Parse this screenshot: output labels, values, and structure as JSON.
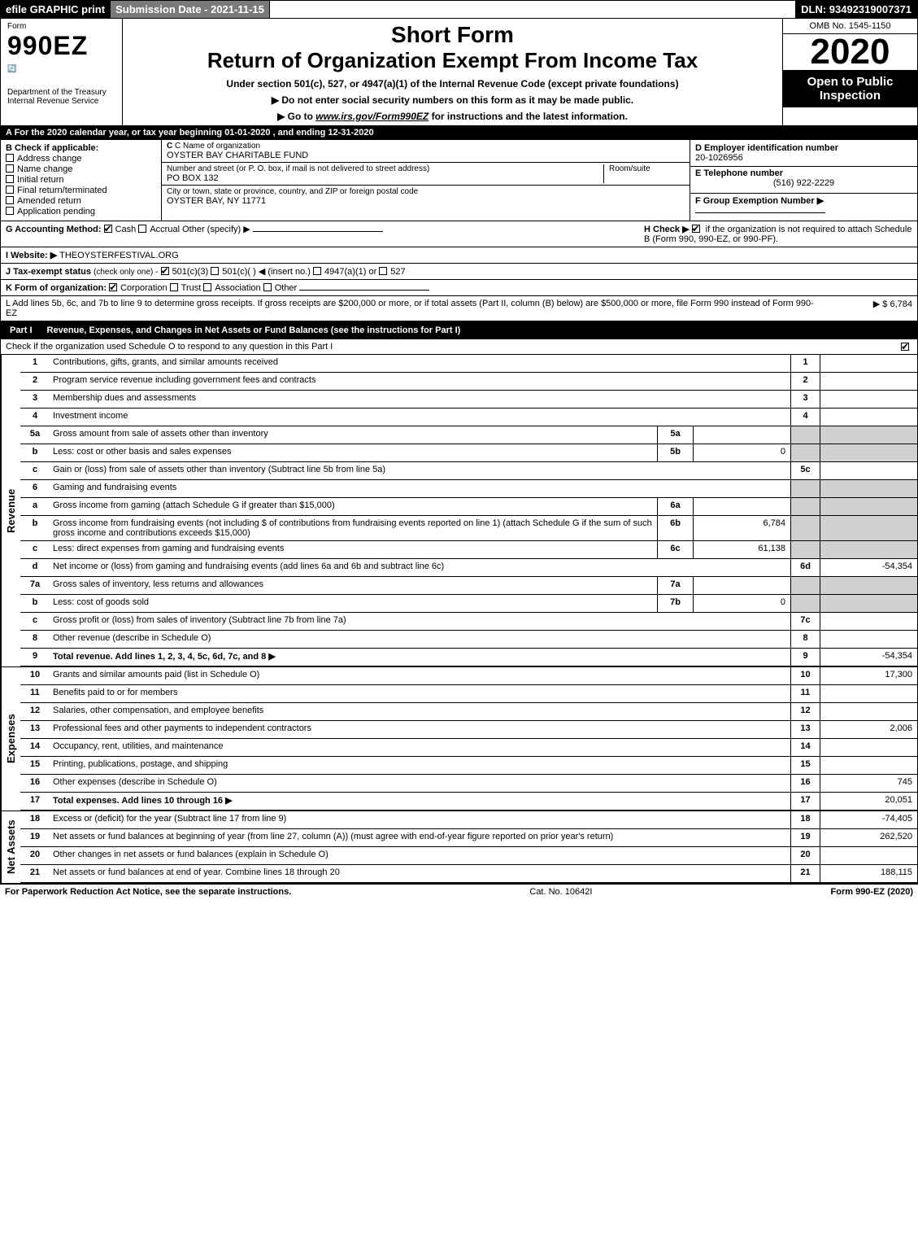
{
  "topbar": {
    "efile": "efile GRAPHIC print",
    "submission": "Submission Date - 2021-11-15",
    "dln": "DLN: 93492319007371"
  },
  "header": {
    "form_word": "Form",
    "form_number": "990EZ",
    "dept1": "Department of the Treasury",
    "dept2": "Internal Revenue Service",
    "short_form": "Short Form",
    "title": "Return of Organization Exempt From Income Tax",
    "subtitle": "Under section 501(c), 527, or 4947(a)(1) of the Internal Revenue Code (except private foundations)",
    "warn": "Do not enter social security numbers on this form as it may be made public.",
    "goto_pre": "Go to ",
    "goto_link": "www.irs.gov/Form990EZ",
    "goto_post": " for instructions and the latest information.",
    "omb": "OMB No. 1545-1150",
    "year": "2020",
    "open": "Open to Public Inspection"
  },
  "rowA": "A For the 2020 calendar year, or tax year beginning 01-01-2020 , and ending 12-31-2020",
  "sectionB": {
    "label": "B Check if applicable:",
    "items": [
      {
        "checked": false,
        "label": "Address change"
      },
      {
        "checked": false,
        "label": "Name change"
      },
      {
        "checked": false,
        "label": "Initial return"
      },
      {
        "checked": false,
        "label": "Final return/terminated"
      },
      {
        "checked": false,
        "label": "Amended return"
      },
      {
        "checked": false,
        "label": "Application pending"
      }
    ]
  },
  "sectionC": {
    "label": "C Name of organization",
    "org": "OYSTER BAY CHARITABLE FUND",
    "addr_label": "Number and street (or P. O. box, if mail is not delivered to street address)",
    "room_label": "Room/suite",
    "addr": "PO BOX 132",
    "city_label": "City or town, state or province, country, and ZIP or foreign postal code",
    "city": "OYSTER BAY, NY  11771"
  },
  "sectionD": {
    "label": "D Employer identification number",
    "value": "20-1026956"
  },
  "sectionE": {
    "label": "E Telephone number",
    "value": "(516) 922-2229"
  },
  "sectionF": {
    "label": "F Group Exemption Number ▶",
    "value": ""
  },
  "sectionG": {
    "label": "G Accounting Method:",
    "cash": "Cash",
    "accrual": "Accrual",
    "other": "Other (specify) ▶",
    "cash_checked": true
  },
  "sectionH": {
    "label": "H Check ▶",
    "checked": true,
    "rest": "if the organization is not required to attach Schedule B (Form 990, 990-EZ, or 990-PF)."
  },
  "sectionI": {
    "label": "I Website: ▶",
    "value": "THEOYSTERFESTIVAL.ORG"
  },
  "sectionJ": {
    "label": "J Tax-exempt status",
    "note": "(check only one) -",
    "opts": [
      "501(c)(3)",
      "501(c)(  ) ◀ (insert no.)",
      "4947(a)(1) or",
      "527"
    ],
    "checked_index": 0
  },
  "sectionK": {
    "label": "K Form of organization:",
    "opts": [
      "Corporation",
      "Trust",
      "Association",
      "Other"
    ],
    "checked_index": 0
  },
  "sectionL": {
    "label": "L Add lines 5b, 6c, and 7b to line 9 to determine gross receipts. If gross receipts are $200,000 or more, or if total assets (Part II, column (B) below) are $500,000 or more, file Form 990 instead of Form 990-EZ",
    "value": "▶ $ 6,784"
  },
  "partI": {
    "label": "Part I",
    "title": "Revenue, Expenses, and Changes in Net Assets or Fund Balances (see the instructions for Part I)",
    "check_line": "Check if the organization used Schedule O to respond to any question in this Part I",
    "check_checked": true
  },
  "sections": {
    "revenue_label": "Revenue",
    "expenses_label": "Expenses",
    "netassets_label": "Net Assets"
  },
  "lines": [
    {
      "n": "1",
      "desc": "Contributions, gifts, grants, and similar amounts received",
      "rnum": "1",
      "val": ""
    },
    {
      "n": "2",
      "desc": "Program service revenue including government fees and contracts",
      "rnum": "2",
      "val": ""
    },
    {
      "n": "3",
      "desc": "Membership dues and assessments",
      "rnum": "3",
      "val": ""
    },
    {
      "n": "4",
      "desc": "Investment income",
      "rnum": "4",
      "val": ""
    },
    {
      "n": "5a",
      "desc": "Gross amount from sale of assets other than inventory",
      "sub": "5a",
      "subval": "",
      "shade": true
    },
    {
      "n": "b",
      "desc": "Less: cost or other basis and sales expenses",
      "sub": "5b",
      "subval": "0",
      "shade": true
    },
    {
      "n": "c",
      "desc": "Gain or (loss) from sale of assets other than inventory (Subtract line 5b from line 5a)",
      "rnum": "5c",
      "val": ""
    },
    {
      "n": "6",
      "desc": "Gaming and fundraising events",
      "shade_all": true
    },
    {
      "n": "a",
      "desc": "Gross income from gaming (attach Schedule G if greater than $15,000)",
      "sub": "6a",
      "subval": "",
      "shade": true
    },
    {
      "n": "b",
      "desc": "Gross income from fundraising events (not including $                   of contributions from fundraising events reported on line 1) (attach Schedule G if the sum of such gross income and contributions exceeds $15,000)",
      "sub": "6b",
      "subval": "6,784",
      "shade": true
    },
    {
      "n": "c",
      "desc": "Less: direct expenses from gaming and fundraising events",
      "sub": "6c",
      "subval": "61,138",
      "shade": true
    },
    {
      "n": "d",
      "desc": "Net income or (loss) from gaming and fundraising events (add lines 6a and 6b and subtract line 6c)",
      "rnum": "6d",
      "val": "-54,354"
    },
    {
      "n": "7a",
      "desc": "Gross sales of inventory, less returns and allowances",
      "sub": "7a",
      "subval": "",
      "shade": true
    },
    {
      "n": "b",
      "desc": "Less: cost of goods sold",
      "sub": "7b",
      "subval": "0",
      "shade": true
    },
    {
      "n": "c",
      "desc": "Gross profit or (loss) from sales of inventory (Subtract line 7b from line 7a)",
      "rnum": "7c",
      "val": ""
    },
    {
      "n": "8",
      "desc": "Other revenue (describe in Schedule O)",
      "rnum": "8",
      "val": ""
    },
    {
      "n": "9",
      "desc": "Total revenue. Add lines 1, 2, 3, 4, 5c, 6d, 7c, and 8",
      "rnum": "9",
      "val": "-54,354",
      "bold": true,
      "arrow": true
    }
  ],
  "exp_lines": [
    {
      "n": "10",
      "desc": "Grants and similar amounts paid (list in Schedule O)",
      "rnum": "10",
      "val": "17,300"
    },
    {
      "n": "11",
      "desc": "Benefits paid to or for members",
      "rnum": "11",
      "val": ""
    },
    {
      "n": "12",
      "desc": "Salaries, other compensation, and employee benefits",
      "rnum": "12",
      "val": ""
    },
    {
      "n": "13",
      "desc": "Professional fees and other payments to independent contractors",
      "rnum": "13",
      "val": "2,006"
    },
    {
      "n": "14",
      "desc": "Occupancy, rent, utilities, and maintenance",
      "rnum": "14",
      "val": ""
    },
    {
      "n": "15",
      "desc": "Printing, publications, postage, and shipping",
      "rnum": "15",
      "val": ""
    },
    {
      "n": "16",
      "desc": "Other expenses (describe in Schedule O)",
      "rnum": "16",
      "val": "745"
    },
    {
      "n": "17",
      "desc": "Total expenses. Add lines 10 through 16",
      "rnum": "17",
      "val": "20,051",
      "bold": true,
      "arrow": true
    }
  ],
  "na_lines": [
    {
      "n": "18",
      "desc": "Excess or (deficit) for the year (Subtract line 17 from line 9)",
      "rnum": "18",
      "val": "-74,405"
    },
    {
      "n": "19",
      "desc": "Net assets or fund balances at beginning of year (from line 27, column (A)) (must agree with end-of-year figure reported on prior year's return)",
      "rnum": "19",
      "val": "262,520"
    },
    {
      "n": "20",
      "desc": "Other changes in net assets or fund balances (explain in Schedule O)",
      "rnum": "20",
      "val": ""
    },
    {
      "n": "21",
      "desc": "Net assets or fund balances at end of year. Combine lines 18 through 20",
      "rnum": "21",
      "val": "188,115"
    }
  ],
  "footer": {
    "left": "For Paperwork Reduction Act Notice, see the separate instructions.",
    "mid": "Cat. No. 10642I",
    "right": "Form 990-EZ (2020)"
  },
  "colors": {
    "black": "#000000",
    "white": "#ffffff",
    "grey_header": "#7a7a7a",
    "shade": "#d0d0d0"
  }
}
